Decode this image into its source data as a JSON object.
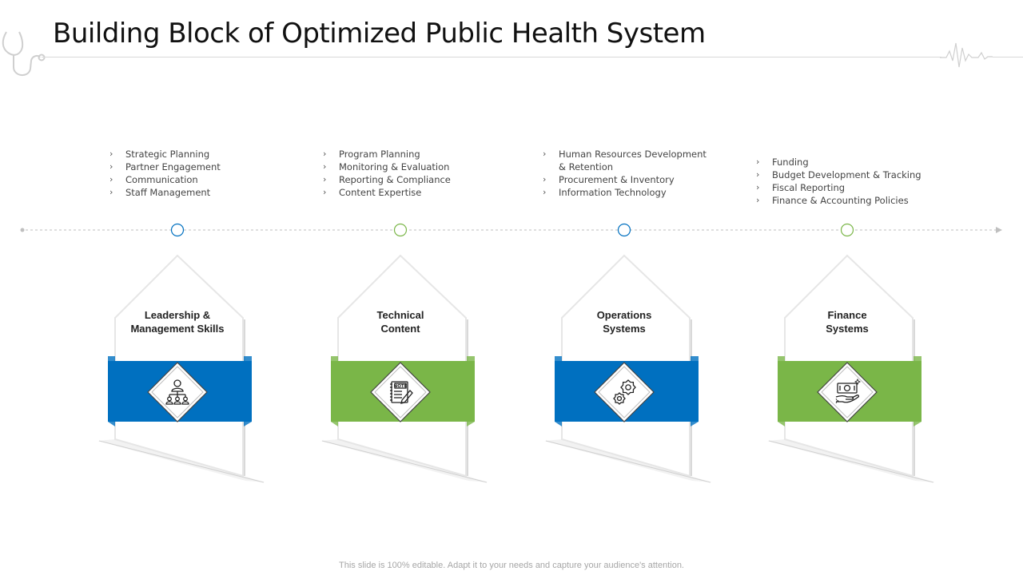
{
  "title": "Building Block of Optimized Public Health System",
  "footer": "This slide is 100% editable. Adapt it to your needs and capture your audience's attention.",
  "colors": {
    "blue": "#0070c0",
    "green": "#7ab648",
    "line": "#bfbfbf"
  },
  "blocks": [
    {
      "title_lines": [
        "Leadership &",
        "Management Skills"
      ],
      "icon": "team-hierarchy-icon",
      "color": "blue",
      "bullets": [
        [
          "Strategic Planning"
        ],
        [
          "Partner Engagement"
        ],
        [
          "Communication"
        ],
        [
          "Staff Management"
        ]
      ]
    },
    {
      "title_lines": [
        "Technical",
        "Content"
      ],
      "icon": "note-pencil-icon",
      "color": "green",
      "bullets": [
        [
          "Program Planning"
        ],
        [
          "Monitoring & Evaluation"
        ],
        [
          "Reporting & Compliance"
        ],
        [
          "Content  Expertise"
        ]
      ]
    },
    {
      "title_lines": [
        "Operations",
        "Systems"
      ],
      "icon": "gears-icon",
      "color": "blue",
      "bullets": [
        [
          "Human Resources Development",
          "& Retention"
        ],
        [
          "Procurement  & Inventory"
        ],
        [
          "Information Technology"
        ]
      ]
    },
    {
      "title_lines": [
        "Finance",
        "Systems"
      ],
      "icon": "money-hand-icon",
      "color": "green",
      "bullets": [
        [
          "Funding"
        ],
        [
          "Budget  Development  & Tracking"
        ],
        [
          "Fiscal Reporting"
        ],
        [
          "Finance & Accounting Policies"
        ]
      ]
    }
  ]
}
